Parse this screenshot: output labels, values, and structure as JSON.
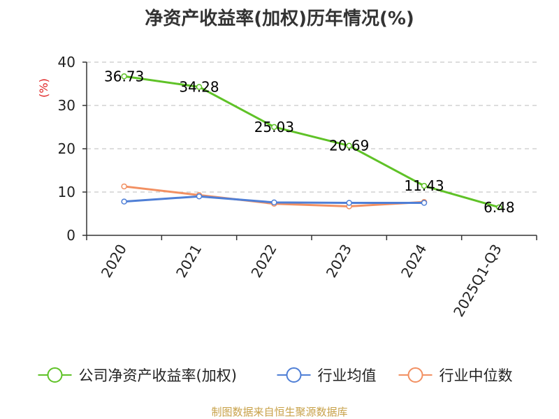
{
  "chart_data": {
    "type": "line",
    "title": "净资产收益率(加权)历年情况(%)",
    "ylabel": "(%)",
    "ylim": [
      0,
      40
    ],
    "yticks": [
      0,
      10,
      20,
      30,
      40
    ],
    "grid": true,
    "legend_position": "bottom",
    "categories": [
      "2020",
      "2021",
      "2022",
      "2023",
      "2024",
      "2025Q1-Q3"
    ],
    "series": [
      {
        "name": "公司净资产收益率(加权)",
        "color": "#5fc227",
        "show_labels": true,
        "values": [
          36.73,
          34.28,
          25.03,
          20.69,
          11.43,
          6.48
        ],
        "labels": [
          "36.73",
          "34.28",
          "25.03",
          "20.69",
          "11.43",
          "6.48"
        ]
      },
      {
        "name": "行业均值",
        "color": "#4f7fd6",
        "show_labels": false,
        "values": [
          7.8,
          9.0,
          7.6,
          7.5,
          7.5,
          null
        ]
      },
      {
        "name": "行业中位数",
        "color": "#f29062",
        "show_labels": false,
        "values": [
          11.3,
          9.3,
          7.3,
          6.7,
          7.7,
          null
        ]
      }
    ]
  },
  "source": "制图数据来自恒生聚源数据库",
  "colors": {
    "axis": "#333333",
    "grid": "#bbbbbb",
    "unit": "#e02020",
    "source": "#c8a24a"
  }
}
